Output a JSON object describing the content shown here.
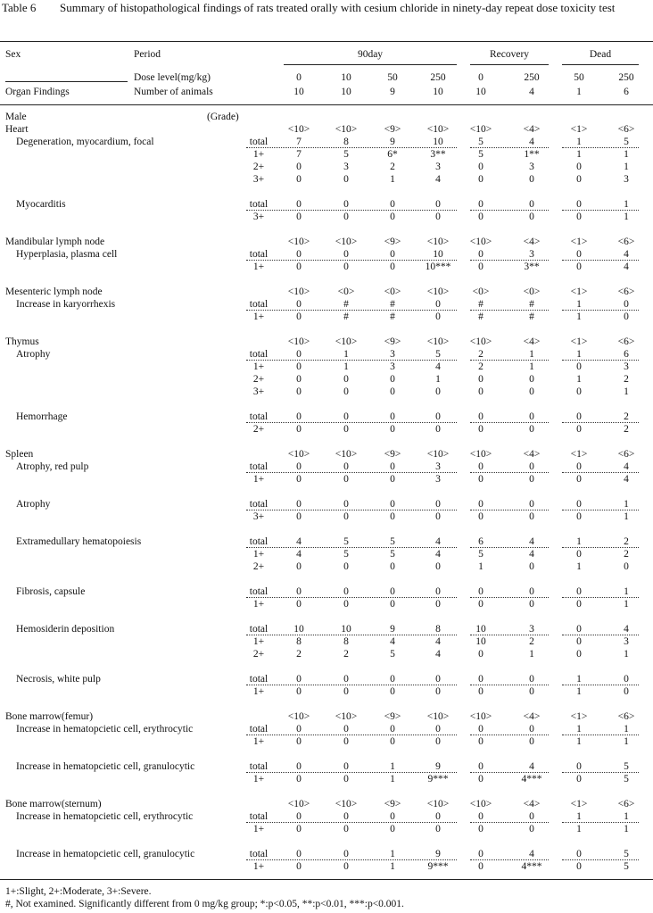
{
  "caption": "Table 6",
  "title": "Summary of histopathological findings of rats treated orally with cesium chloride in ninety-day repeat dose toxicity test",
  "header": {
    "sex": "Sex",
    "period": "Period",
    "organ_findings": "Organ Findings",
    "dose_label": "Dose level(mg/kg)",
    "animals_label": "Number of animals",
    "groups": [
      {
        "name": "90day",
        "doses": [
          0,
          10,
          50,
          250
        ],
        "animals": [
          10,
          10,
          9,
          10
        ]
      },
      {
        "name": "Recovery",
        "doses": [
          0,
          250
        ],
        "animals": [
          10,
          4
        ]
      },
      {
        "name": "Dead",
        "doses": [
          50,
          250
        ],
        "animals": [
          1,
          6
        ]
      }
    ]
  },
  "sex_label": "Male",
  "grade_label": "(Grade)",
  "sections": [
    {
      "organ": "Heart",
      "counts": [
        "<10>",
        "<10>",
        "<9>",
        "<10>",
        "<10>",
        "<4>",
        "<1>",
        "<6>"
      ],
      "findings": [
        {
          "name": "Degeneration, myocardium, focal",
          "rows": [
            {
              "grade": "total",
              "values": [
                7,
                8,
                9,
                10,
                5,
                4,
                1,
                5
              ]
            },
            {
              "grade": "1+",
              "values": [
                7,
                5,
                "6*",
                "3**",
                5,
                "1**",
                1,
                1
              ]
            },
            {
              "grade": "2+",
              "values": [
                0,
                3,
                2,
                3,
                0,
                3,
                0,
                1
              ]
            },
            {
              "grade": "3+",
              "values": [
                0,
                0,
                1,
                4,
                0,
                0,
                0,
                3
              ]
            }
          ]
        },
        {
          "name": "Myocarditis",
          "rows": [
            {
              "grade": "total",
              "values": [
                0,
                0,
                0,
                0,
                0,
                0,
                0,
                1
              ]
            },
            {
              "grade": "3+",
              "values": [
                0,
                0,
                0,
                0,
                0,
                0,
                0,
                1
              ]
            }
          ]
        }
      ]
    },
    {
      "organ": "Mandibular lymph node",
      "counts": [
        "<10>",
        "<10>",
        "<9>",
        "<10>",
        "<10>",
        "<4>",
        "<1>",
        "<6>"
      ],
      "findings": [
        {
          "name": "Hyperplasia, plasma cell",
          "rows": [
            {
              "grade": "total",
              "values": [
                0,
                0,
                0,
                10,
                0,
                3,
                0,
                4
              ]
            },
            {
              "grade": "1+",
              "values": [
                0,
                0,
                0,
                "10***",
                0,
                "3**",
                0,
                4
              ]
            }
          ]
        }
      ]
    },
    {
      "organ": "Mesenteric lymph node",
      "counts": [
        "<10>",
        "<0>",
        "<0>",
        "<10>",
        "<0>",
        "<0>",
        "<1>",
        "<6>"
      ],
      "findings": [
        {
          "name": "Increase in karyorrhexis",
          "rows": [
            {
              "grade": "total",
              "values": [
                0,
                "#",
                "#",
                0,
                "#",
                "#",
                1,
                0
              ]
            },
            {
              "grade": "1+",
              "values": [
                0,
                "#",
                "#",
                0,
                "#",
                "#",
                1,
                0
              ]
            }
          ]
        }
      ]
    },
    {
      "organ": "Thymus",
      "counts": [
        "<10>",
        "<10>",
        "<9>",
        "<10>",
        "<10>",
        "<4>",
        "<1>",
        "<6>"
      ],
      "findings": [
        {
          "name": "Atrophy",
          "rows": [
            {
              "grade": "total",
              "values": [
                0,
                1,
                3,
                5,
                2,
                1,
                1,
                6
              ]
            },
            {
              "grade": "1+",
              "values": [
                0,
                1,
                3,
                4,
                2,
                1,
                0,
                3
              ]
            },
            {
              "grade": "2+",
              "values": [
                0,
                0,
                0,
                1,
                0,
                0,
                1,
                2
              ]
            },
            {
              "grade": "3+",
              "values": [
                0,
                0,
                0,
                0,
                0,
                0,
                0,
                1
              ]
            }
          ]
        },
        {
          "name": "Hemorrhage",
          "rows": [
            {
              "grade": "total",
              "values": [
                0,
                0,
                0,
                0,
                0,
                0,
                0,
                2
              ]
            },
            {
              "grade": "2+",
              "values": [
                0,
                0,
                0,
                0,
                0,
                0,
                0,
                2
              ]
            }
          ]
        }
      ]
    },
    {
      "organ": "Spleen",
      "counts": [
        "<10>",
        "<10>",
        "<9>",
        "<10>",
        "<10>",
        "<4>",
        "<1>",
        "<6>"
      ],
      "findings": [
        {
          "name": "Atrophy, red pulp",
          "rows": [
            {
              "grade": "total",
              "values": [
                0,
                0,
                0,
                3,
                0,
                0,
                0,
                4
              ]
            },
            {
              "grade": "1+",
              "values": [
                0,
                0,
                0,
                3,
                0,
                0,
                0,
                4
              ]
            }
          ]
        },
        {
          "name": "Atrophy",
          "rows": [
            {
              "grade": "total",
              "values": [
                0,
                0,
                0,
                0,
                0,
                0,
                0,
                1
              ]
            },
            {
              "grade": "3+",
              "values": [
                0,
                0,
                0,
                0,
                0,
                0,
                0,
                1
              ]
            }
          ]
        },
        {
          "name": "Extramedullary hematopoiesis",
          "rows": [
            {
              "grade": "total",
              "values": [
                4,
                5,
                5,
                4,
                6,
                4,
                1,
                2
              ]
            },
            {
              "grade": "1+",
              "values": [
                4,
                5,
                5,
                4,
                5,
                4,
                0,
                2
              ]
            },
            {
              "grade": "2+",
              "values": [
                0,
                0,
                0,
                0,
                1,
                0,
                1,
                0
              ]
            }
          ]
        },
        {
          "name": "Fibrosis, capsule",
          "rows": [
            {
              "grade": "total",
              "values": [
                0,
                0,
                0,
                0,
                0,
                0,
                0,
                1
              ]
            },
            {
              "grade": "1+",
              "values": [
                0,
                0,
                0,
                0,
                0,
                0,
                0,
                1
              ]
            }
          ]
        },
        {
          "name": "Hemosiderin deposition",
          "rows": [
            {
              "grade": "total",
              "values": [
                10,
                10,
                9,
                8,
                10,
                3,
                0,
                4
              ]
            },
            {
              "grade": "1+",
              "values": [
                8,
                8,
                4,
                4,
                10,
                2,
                0,
                3
              ]
            },
            {
              "grade": "2+",
              "values": [
                2,
                2,
                5,
                4,
                0,
                1,
                0,
                1
              ]
            }
          ]
        },
        {
          "name": "Necrosis, white pulp",
          "rows": [
            {
              "grade": "total",
              "values": [
                0,
                0,
                0,
                0,
                0,
                0,
                1,
                0
              ]
            },
            {
              "grade": "1+",
              "values": [
                0,
                0,
                0,
                0,
                0,
                0,
                1,
                0
              ]
            }
          ]
        }
      ]
    },
    {
      "organ": "Bone marrow(femur)",
      "counts": [
        "<10>",
        "<10>",
        "<9>",
        "<10>",
        "<10>",
        "<4>",
        "<1>",
        "<6>"
      ],
      "findings": [
        {
          "name": "Increase in hematopcietic cell, erythrocytic",
          "rows": [
            {
              "grade": "total",
              "values": [
                0,
                0,
                0,
                0,
                0,
                0,
                1,
                1
              ]
            },
            {
              "grade": "1+",
              "values": [
                0,
                0,
                0,
                0,
                0,
                0,
                1,
                1
              ]
            }
          ]
        },
        {
          "name": "Increase in hematopcietic cell, granulocytic",
          "rows": [
            {
              "grade": "total",
              "values": [
                0,
                0,
                1,
                9,
                0,
                4,
                0,
                5
              ]
            },
            {
              "grade": "1+",
              "values": [
                0,
                0,
                1,
                "9***",
                0,
                "4***",
                0,
                5
              ]
            }
          ]
        }
      ]
    },
    {
      "organ": "Bone marrow(sternum)",
      "counts": [
        "<10>",
        "<10>",
        "<9>",
        "<10>",
        "<10>",
        "<4>",
        "<1>",
        "<6>"
      ],
      "findings": [
        {
          "name": "Increase in hematopcietic cell, erythrocytic",
          "rows": [
            {
              "grade": "total",
              "values": [
                0,
                0,
                0,
                0,
                0,
                0,
                1,
                1
              ]
            },
            {
              "grade": "1+",
              "values": [
                0,
                0,
                0,
                0,
                0,
                0,
                1,
                1
              ]
            }
          ]
        },
        {
          "name": "Increase in hematopcietic cell, granulocytic",
          "rows": [
            {
              "grade": "total",
              "values": [
                0,
                0,
                1,
                9,
                0,
                4,
                0,
                5
              ]
            },
            {
              "grade": "1+",
              "values": [
                0,
                0,
                1,
                "9***",
                0,
                "4***",
                0,
                5
              ]
            }
          ]
        }
      ]
    }
  ],
  "footnotes": [
    "1+:Slight, 2+:Moderate, 3+:Severe.",
    "#, Not examined. Significantly different from 0 mg/kg group; *:p<0.05, **:p<0.01, ***:p<0.001."
  ]
}
